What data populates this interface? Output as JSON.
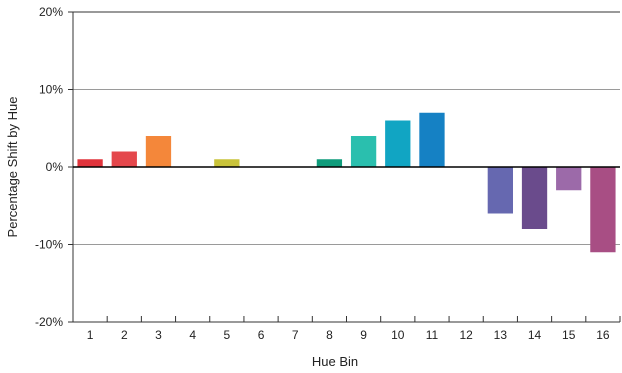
{
  "chart_data": {
    "type": "bar",
    "title": "",
    "xlabel": "Hue Bin",
    "ylabel": "Percentage Shift by Hue",
    "ylim": [
      -20,
      20
    ],
    "yticks": [
      -20,
      -10,
      0,
      10,
      20
    ],
    "ytick_labels": [
      "-20%",
      "-10%",
      "0%",
      "10%",
      "20%"
    ],
    "grid": true,
    "categories": [
      "1",
      "2",
      "3",
      "4",
      "5",
      "6",
      "7",
      "8",
      "9",
      "10",
      "11",
      "12",
      "13",
      "14",
      "15",
      "16"
    ],
    "values": [
      1,
      2,
      4,
      0,
      1,
      0,
      0,
      1,
      4,
      6,
      7,
      0,
      -6,
      -8,
      -3,
      -11
    ],
    "colors": [
      "#e0343c",
      "#e4474c",
      "#f4873a",
      "#cccccc",
      "#c9c33a",
      "#cccccc",
      "#cccccc",
      "#0f9c7b",
      "#2abfae",
      "#11a5c3",
      "#1581c4",
      "#cccccc",
      "#6668b0",
      "#6a4b8c",
      "#9c6aa9",
      "#a84e84"
    ]
  }
}
